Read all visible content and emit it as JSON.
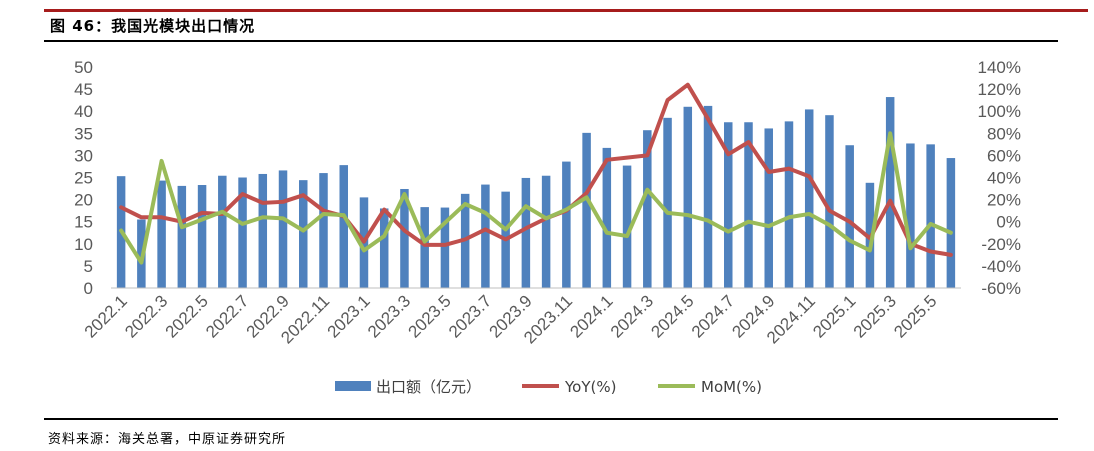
{
  "figure": {
    "title": "图 46：我国光模块出口情况",
    "source": "资料来源：海关总署，中原证券研究所"
  },
  "chart_data": {
    "type": "bar+line",
    "categories": [
      "2022.1",
      "2022.2",
      "2022.3",
      "2022.4",
      "2022.5",
      "2022.6",
      "2022.7",
      "2022.8",
      "2022.9",
      "2022.10",
      "2022.11",
      "2022.12",
      "2023.1",
      "2023.2",
      "2023.3",
      "2023.4",
      "2023.5",
      "2023.6",
      "2023.7",
      "2023.8",
      "2023.9",
      "2023.10",
      "2023.11",
      "2023.12",
      "2024.1",
      "2024.2",
      "2024.3",
      "2024.4",
      "2024.5",
      "2024.6",
      "2024.7",
      "2024.8",
      "2024.9",
      "2024.10",
      "2024.11",
      "2024.12",
      "2025.1",
      "2025.2",
      "2025.3",
      "2025.4",
      "2025.5",
      "2025.6"
    ],
    "x_tick_labels": [
      "2022.1",
      "2022.3",
      "2022.5",
      "2022.7",
      "2022.9",
      "2022.11",
      "2023.1",
      "2023.3",
      "2023.5",
      "2023.7",
      "2023.9",
      "2023.11",
      "2024.1",
      "2024.3",
      "2024.5",
      "2024.7",
      "2024.9",
      "2024.11",
      "2025.1",
      "2025.3",
      "2025.5"
    ],
    "y_left": {
      "min": 0,
      "max": 50,
      "step": 5,
      "ticks": [
        "0",
        "5",
        "10",
        "15",
        "20",
        "25",
        "30",
        "35",
        "40",
        "45",
        "50"
      ]
    },
    "y_right": {
      "min": -60,
      "max": 140,
      "step": 20,
      "ticks": [
        "-60%",
        "-40%",
        "-20%",
        "0%",
        "20%",
        "40%",
        "60%",
        "80%",
        "100%",
        "120%",
        "140%"
      ]
    },
    "series": [
      {
        "name": "出口额（亿元）",
        "type": "bar",
        "axis": "left",
        "color": "#4F81BD",
        "values": [
          25.3,
          15.5,
          24.3,
          23.1,
          23.3,
          25.4,
          25.0,
          25.8,
          26.6,
          24.4,
          26.0,
          27.8,
          20.5,
          18.0,
          22.4,
          18.3,
          18.2,
          21.3,
          23.4,
          21.8,
          24.9,
          25.4,
          28.6,
          35.1,
          31.7,
          27.7,
          35.7,
          38.5,
          41.0,
          41.2,
          37.5,
          37.5,
          36.1,
          37.7,
          40.4,
          39.1,
          32.3,
          23.8,
          43.2,
          32.7,
          32.5,
          29.4
        ]
      },
      {
        "name": "YoY(%)",
        "type": "line",
        "axis": "right",
        "color": "#C0504D",
        "values": [
          13,
          4,
          4,
          0,
          8,
          7,
          25,
          17,
          18,
          24,
          10,
          5,
          -18,
          11,
          -8,
          -21,
          -21,
          -16,
          -7,
          -16,
          -6,
          3,
          10,
          26,
          56,
          58,
          60,
          110,
          124,
          93,
          61,
          72,
          45,
          48,
          41,
          10,
          0,
          -15,
          19,
          -20,
          -27,
          -30
        ]
      },
      {
        "name": "MoM(%)",
        "type": "line",
        "axis": "right",
        "color": "#9BBB59",
        "values": [
          -8,
          -37,
          55,
          -5,
          2,
          9,
          -2,
          4,
          3,
          -8,
          7,
          6,
          -26,
          -13,
          25,
          -18,
          -1,
          16,
          8,
          -7,
          14,
          3,
          11,
          22,
          -10,
          -13,
          29,
          8,
          6,
          1,
          -9,
          0,
          -4,
          4,
          7,
          -3,
          -17,
          -26,
          80,
          -24,
          -2,
          -10
        ]
      }
    ],
    "legend_position": "bottom",
    "grid": false
  }
}
